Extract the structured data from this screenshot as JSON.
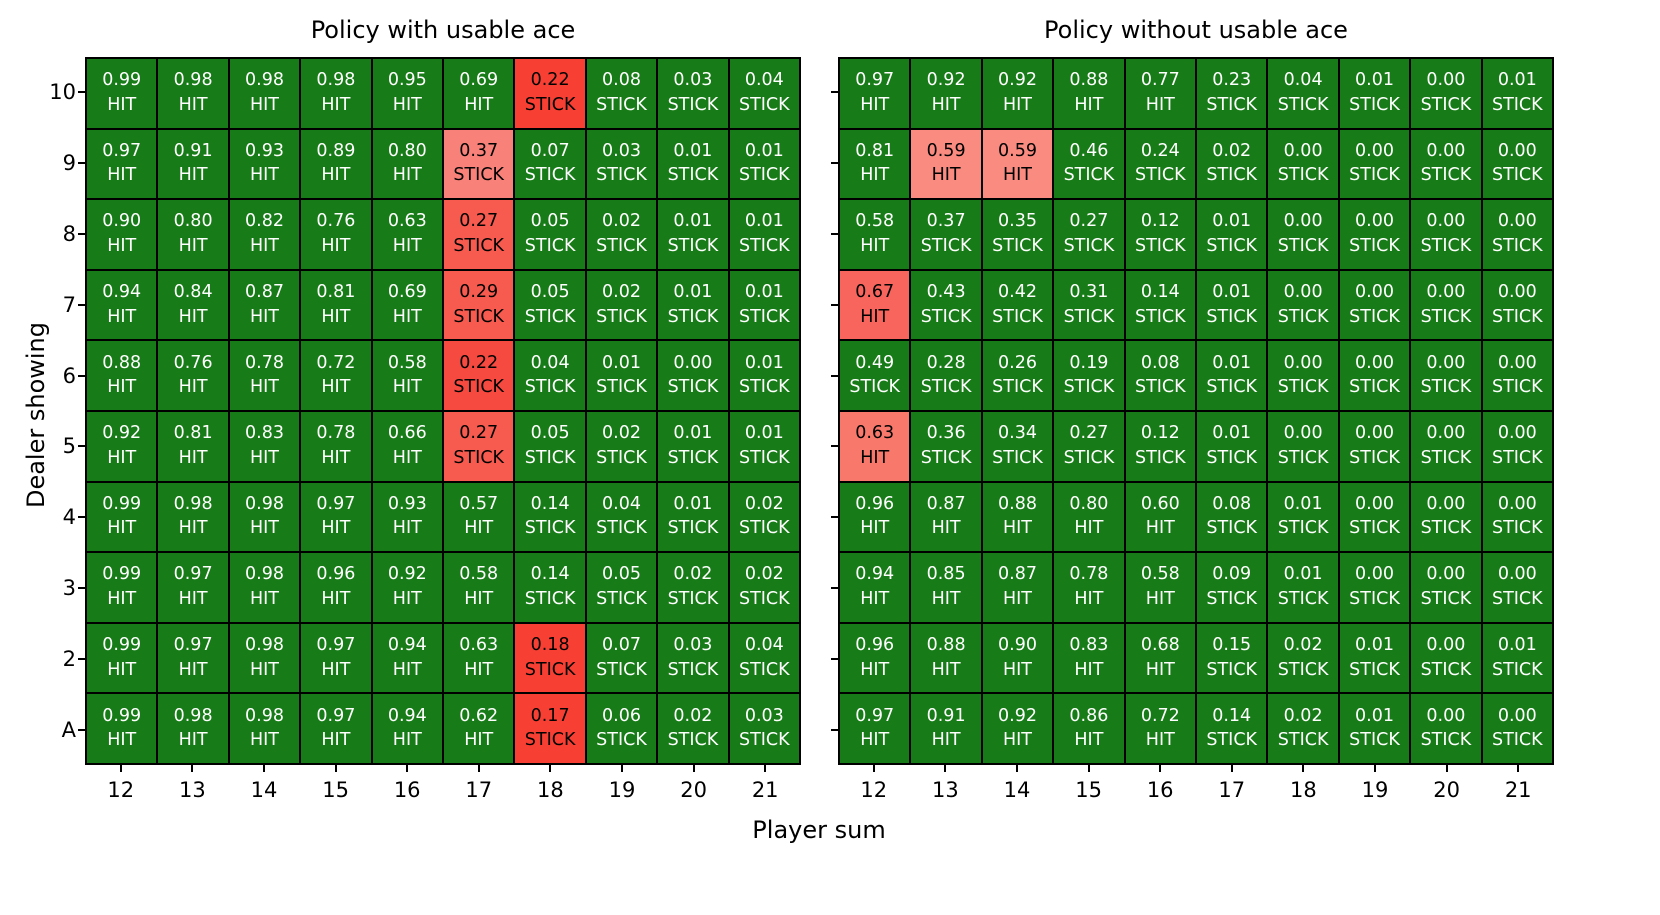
{
  "figure": {
    "xlabel": "Player sum",
    "ylabel": "Dealer showing",
    "x_tick_labels": [
      "12",
      "13",
      "14",
      "15",
      "16",
      "17",
      "18",
      "19",
      "20",
      "21"
    ],
    "y_tick_labels": [
      "10",
      "9",
      "8",
      "7",
      "6",
      "5",
      "4",
      "3",
      "2",
      "A"
    ]
  },
  "colors": {
    "background": "#ffffff",
    "cell_green": "#177c17",
    "grid_line": "#000000",
    "text_on_green": "#ffffff",
    "text_on_red": "#000000",
    "axis_text": "#000000"
  },
  "chart_data": [
    {
      "type": "heatmap",
      "title": "Policy with usable ace",
      "xlabel": "Player sum",
      "ylabel": "Dealer showing",
      "x": [
        "12",
        "13",
        "14",
        "15",
        "16",
        "17",
        "18",
        "19",
        "20",
        "21"
      ],
      "y": [
        "10",
        "9",
        "8",
        "7",
        "6",
        "5",
        "4",
        "3",
        "2",
        "A"
      ],
      "legend_position": "none",
      "grid": "off",
      "values": [
        [
          "0.99",
          "0.98",
          "0.98",
          "0.98",
          "0.95",
          "0.69",
          "0.22",
          "0.08",
          "0.03",
          "0.04"
        ],
        [
          "0.97",
          "0.91",
          "0.93",
          "0.89",
          "0.80",
          "0.37",
          "0.07",
          "0.03",
          "0.01",
          "0.01"
        ],
        [
          "0.90",
          "0.80",
          "0.82",
          "0.76",
          "0.63",
          "0.27",
          "0.05",
          "0.02",
          "0.01",
          "0.01"
        ],
        [
          "0.94",
          "0.84",
          "0.87",
          "0.81",
          "0.69",
          "0.29",
          "0.05",
          "0.02",
          "0.01",
          "0.01"
        ],
        [
          "0.88",
          "0.76",
          "0.78",
          "0.72",
          "0.58",
          "0.22",
          "0.04",
          "0.01",
          "0.00",
          "0.01"
        ],
        [
          "0.92",
          "0.81",
          "0.83",
          "0.78",
          "0.66",
          "0.27",
          "0.05",
          "0.02",
          "0.01",
          "0.01"
        ],
        [
          "0.99",
          "0.98",
          "0.98",
          "0.97",
          "0.93",
          "0.57",
          "0.14",
          "0.04",
          "0.01",
          "0.02"
        ],
        [
          "0.99",
          "0.97",
          "0.98",
          "0.96",
          "0.92",
          "0.58",
          "0.14",
          "0.05",
          "0.02",
          "0.02"
        ],
        [
          "0.99",
          "0.97",
          "0.98",
          "0.97",
          "0.94",
          "0.63",
          "0.18",
          "0.07",
          "0.03",
          "0.04"
        ],
        [
          "0.99",
          "0.98",
          "0.98",
          "0.97",
          "0.94",
          "0.62",
          "0.17",
          "0.06",
          "0.02",
          "0.03"
        ]
      ],
      "actions": [
        [
          "HIT",
          "HIT",
          "HIT",
          "HIT",
          "HIT",
          "HIT",
          "STICK",
          "STICK",
          "STICK",
          "STICK"
        ],
        [
          "HIT",
          "HIT",
          "HIT",
          "HIT",
          "HIT",
          "STICK",
          "STICK",
          "STICK",
          "STICK",
          "STICK"
        ],
        [
          "HIT",
          "HIT",
          "HIT",
          "HIT",
          "HIT",
          "STICK",
          "STICK",
          "STICK",
          "STICK",
          "STICK"
        ],
        [
          "HIT",
          "HIT",
          "HIT",
          "HIT",
          "HIT",
          "STICK",
          "STICK",
          "STICK",
          "STICK",
          "STICK"
        ],
        [
          "HIT",
          "HIT",
          "HIT",
          "HIT",
          "HIT",
          "STICK",
          "STICK",
          "STICK",
          "STICK",
          "STICK"
        ],
        [
          "HIT",
          "HIT",
          "HIT",
          "HIT",
          "HIT",
          "STICK",
          "STICK",
          "STICK",
          "STICK",
          "STICK"
        ],
        [
          "HIT",
          "HIT",
          "HIT",
          "HIT",
          "HIT",
          "HIT",
          "STICK",
          "STICK",
          "STICK",
          "STICK"
        ],
        [
          "HIT",
          "HIT",
          "HIT",
          "HIT",
          "HIT",
          "HIT",
          "STICK",
          "STICK",
          "STICK",
          "STICK"
        ],
        [
          "HIT",
          "HIT",
          "HIT",
          "HIT",
          "HIT",
          "HIT",
          "STICK",
          "STICK",
          "STICK",
          "STICK"
        ],
        [
          "HIT",
          "HIT",
          "HIT",
          "HIT",
          "HIT",
          "HIT",
          "STICK",
          "STICK",
          "STICK",
          "STICK"
        ]
      ],
      "red_cells": [
        {
          "row": 0,
          "col": 6,
          "color": "#f73f33"
        },
        {
          "row": 1,
          "col": 5,
          "color": "#f8827a"
        },
        {
          "row": 2,
          "col": 5,
          "color": "#f75a4e"
        },
        {
          "row": 3,
          "col": 5,
          "color": "#f75a4e"
        },
        {
          "row": 4,
          "col": 5,
          "color": "#f64a40"
        },
        {
          "row": 5,
          "col": 5,
          "color": "#f75a4e"
        },
        {
          "row": 8,
          "col": 6,
          "color": "#f73f33"
        },
        {
          "row": 9,
          "col": 6,
          "color": "#f73f33"
        }
      ]
    },
    {
      "type": "heatmap",
      "title": "Policy without usable ace",
      "xlabel": "Player sum",
      "ylabel": "Dealer showing",
      "x": [
        "12",
        "13",
        "14",
        "15",
        "16",
        "17",
        "18",
        "19",
        "20",
        "21"
      ],
      "y": [
        "10",
        "9",
        "8",
        "7",
        "6",
        "5",
        "4",
        "3",
        "2",
        "A"
      ],
      "legend_position": "none",
      "grid": "off",
      "values": [
        [
          "0.97",
          "0.92",
          "0.92",
          "0.88",
          "0.77",
          "0.23",
          "0.04",
          "0.01",
          "0.00",
          "0.01"
        ],
        [
          "0.81",
          "0.59",
          "0.59",
          "0.46",
          "0.24",
          "0.02",
          "0.00",
          "0.00",
          "0.00",
          "0.00"
        ],
        [
          "0.58",
          "0.37",
          "0.35",
          "0.27",
          "0.12",
          "0.01",
          "0.00",
          "0.00",
          "0.00",
          "0.00"
        ],
        [
          "0.67",
          "0.43",
          "0.42",
          "0.31",
          "0.14",
          "0.01",
          "0.00",
          "0.00",
          "0.00",
          "0.00"
        ],
        [
          "0.49",
          "0.28",
          "0.26",
          "0.19",
          "0.08",
          "0.01",
          "0.00",
          "0.00",
          "0.00",
          "0.00"
        ],
        [
          "0.63",
          "0.36",
          "0.34",
          "0.27",
          "0.12",
          "0.01",
          "0.00",
          "0.00",
          "0.00",
          "0.00"
        ],
        [
          "0.96",
          "0.87",
          "0.88",
          "0.80",
          "0.60",
          "0.08",
          "0.01",
          "0.00",
          "0.00",
          "0.00"
        ],
        [
          "0.94",
          "0.85",
          "0.87",
          "0.78",
          "0.58",
          "0.09",
          "0.01",
          "0.00",
          "0.00",
          "0.00"
        ],
        [
          "0.96",
          "0.88",
          "0.90",
          "0.83",
          "0.68",
          "0.15",
          "0.02",
          "0.01",
          "0.00",
          "0.01"
        ],
        [
          "0.97",
          "0.91",
          "0.92",
          "0.86",
          "0.72",
          "0.14",
          "0.02",
          "0.01",
          "0.00",
          "0.00"
        ]
      ],
      "actions": [
        [
          "HIT",
          "HIT",
          "HIT",
          "HIT",
          "HIT",
          "STICK",
          "STICK",
          "STICK",
          "STICK",
          "STICK"
        ],
        [
          "HIT",
          "HIT",
          "HIT",
          "STICK",
          "STICK",
          "STICK",
          "STICK",
          "STICK",
          "STICK",
          "STICK"
        ],
        [
          "HIT",
          "STICK",
          "STICK",
          "STICK",
          "STICK",
          "STICK",
          "STICK",
          "STICK",
          "STICK",
          "STICK"
        ],
        [
          "HIT",
          "STICK",
          "STICK",
          "STICK",
          "STICK",
          "STICK",
          "STICK",
          "STICK",
          "STICK",
          "STICK"
        ],
        [
          "STICK",
          "STICK",
          "STICK",
          "STICK",
          "STICK",
          "STICK",
          "STICK",
          "STICK",
          "STICK",
          "STICK"
        ],
        [
          "HIT",
          "STICK",
          "STICK",
          "STICK",
          "STICK",
          "STICK",
          "STICK",
          "STICK",
          "STICK",
          "STICK"
        ],
        [
          "HIT",
          "HIT",
          "HIT",
          "HIT",
          "HIT",
          "STICK",
          "STICK",
          "STICK",
          "STICK",
          "STICK"
        ],
        [
          "HIT",
          "HIT",
          "HIT",
          "HIT",
          "HIT",
          "STICK",
          "STICK",
          "STICK",
          "STICK",
          "STICK"
        ],
        [
          "HIT",
          "HIT",
          "HIT",
          "HIT",
          "HIT",
          "STICK",
          "STICK",
          "STICK",
          "STICK",
          "STICK"
        ],
        [
          "HIT",
          "HIT",
          "HIT",
          "HIT",
          "HIT",
          "STICK",
          "STICK",
          "STICK",
          "STICK",
          "STICK"
        ]
      ],
      "red_cells": [
        {
          "row": 1,
          "col": 1,
          "color": "#f98b80"
        },
        {
          "row": 1,
          "col": 2,
          "color": "#f98b80"
        },
        {
          "row": 3,
          "col": 0,
          "color": "#f7655c"
        },
        {
          "row": 5,
          "col": 0,
          "color": "#f8786c"
        }
      ]
    }
  ]
}
